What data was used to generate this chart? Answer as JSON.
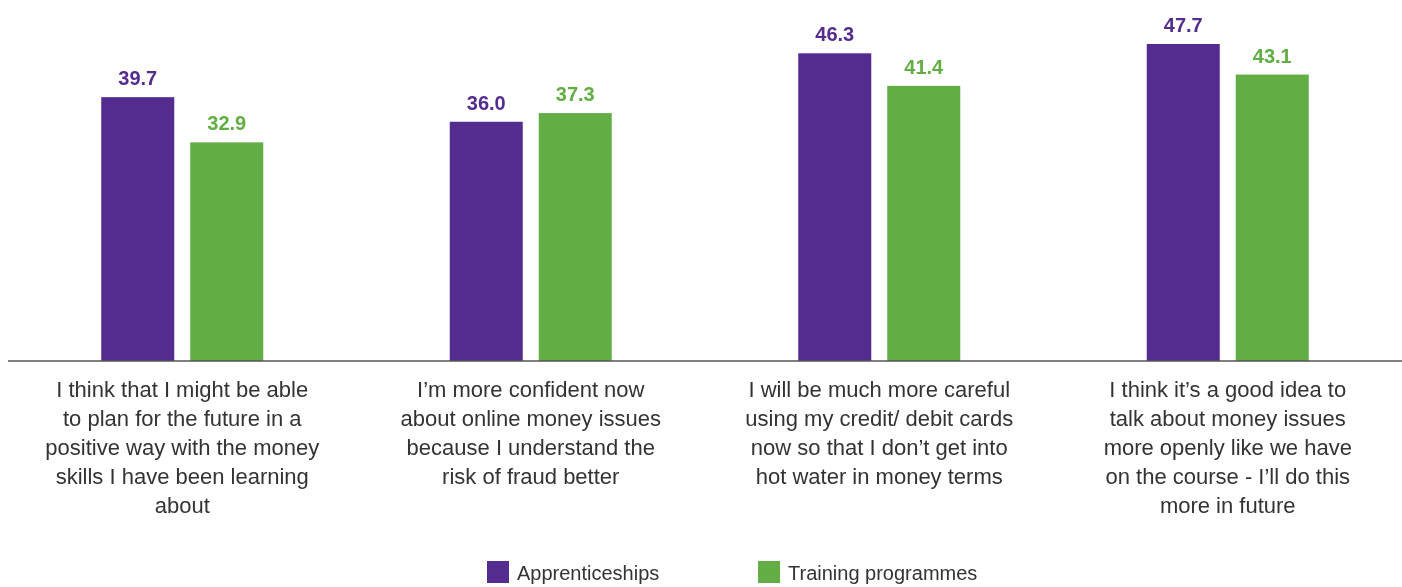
{
  "chart_data": {
    "type": "bar",
    "categories": [
      "I think that I might be able to plan for the future in a positive way with the money skills I have been learning about",
      "I’m more confident now about online money issues because I understand the risk of fraud better",
      "I will be much more careful using my credit/ debit cards now so that I don’t get into hot water in money terms",
      "I think it’s a good idea to talk about money issues more openly like we have on the course - I’ll do this more in future"
    ],
    "series": [
      {
        "name": "Apprenticeships",
        "color": "#542c8f",
        "values": [
          39.7,
          36.0,
          46.3,
          47.7
        ],
        "value_labels": [
          "39.7",
          "36.0",
          "46.3",
          "47.7"
        ]
      },
      {
        "name": "Training programmes",
        "color": "#62ad44",
        "values": [
          32.9,
          37.3,
          41.4,
          43.1
        ],
        "value_labels": [
          "32.9",
          "37.3",
          "41.4",
          "43.1"
        ]
      }
    ],
    "legend": "bottom"
  }
}
